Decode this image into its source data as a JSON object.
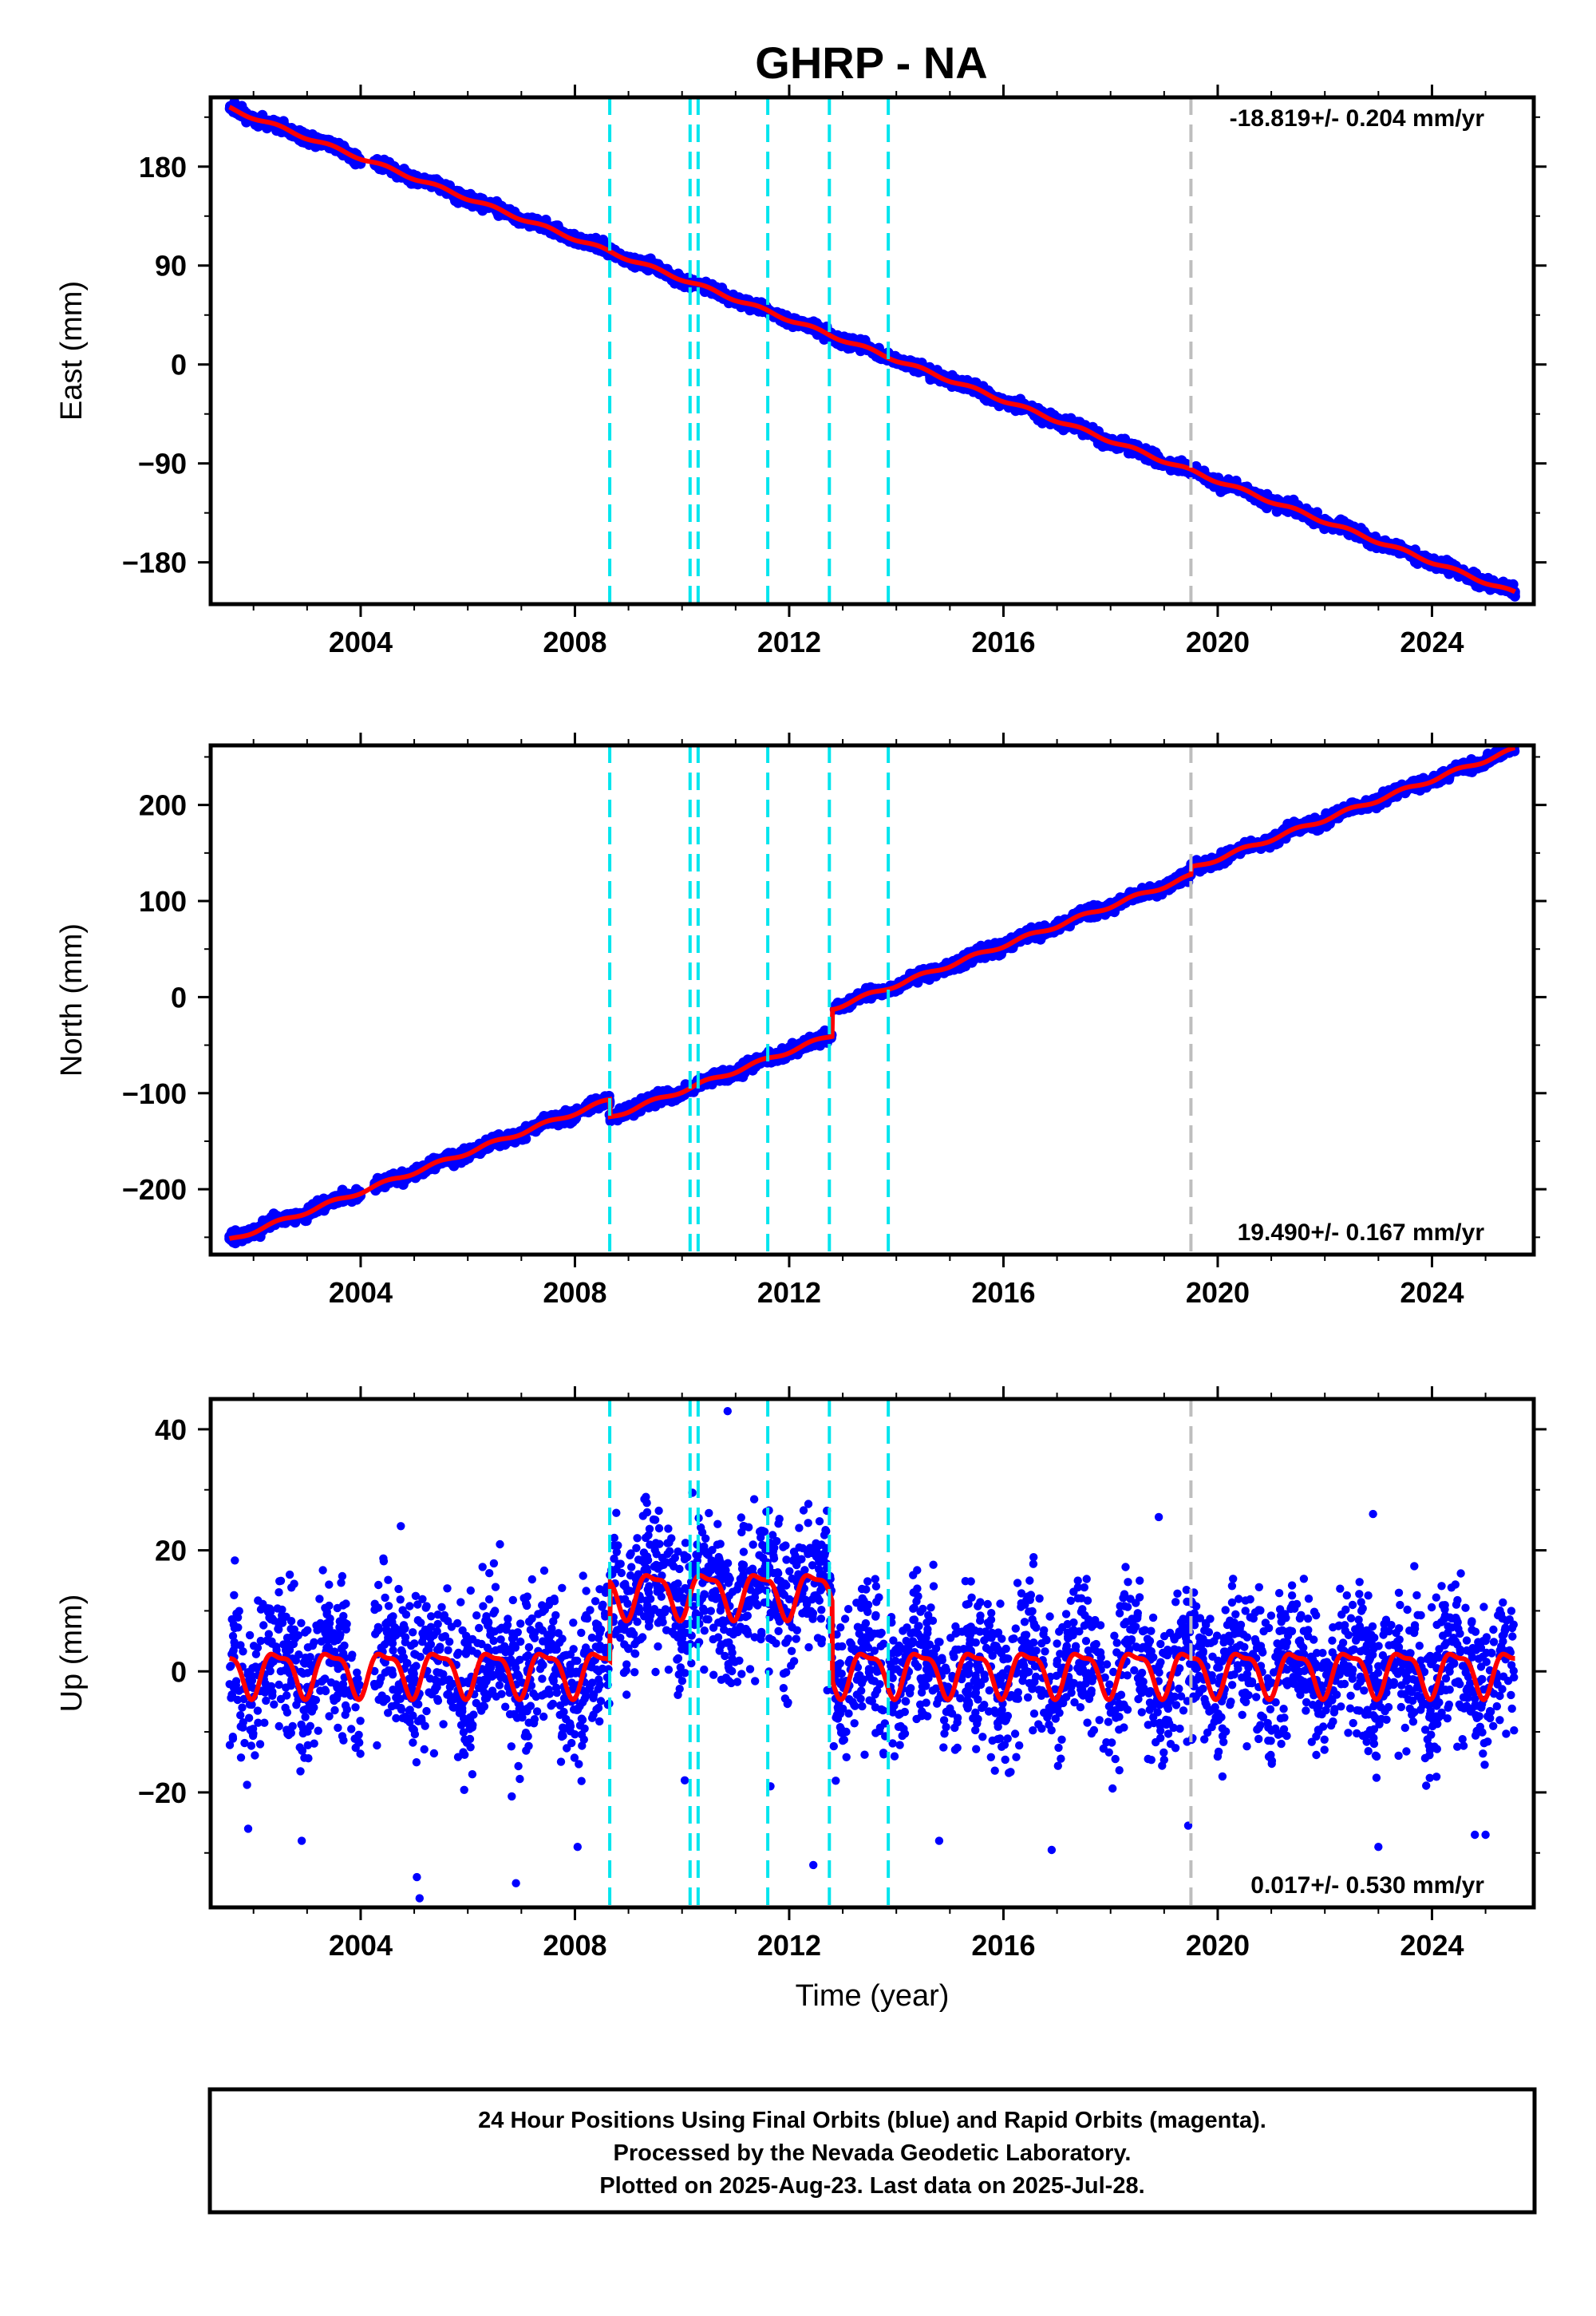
{
  "title": "GHRP - NA",
  "colors": {
    "data_points": "#0000ff",
    "model_fit": "#ff0000",
    "equipment_change_lines": "#00e5ee",
    "other_event_lines": "#bebebe"
  },
  "chart_data": [
    {
      "type": "scatter",
      "component": "east",
      "ylabel": "East (mm)",
      "xlabel": "",
      "xlim": [
        2001.2,
        2025.9
      ],
      "ylim": [
        -218,
        243
      ],
      "yticks": [
        -180,
        -90,
        0,
        90,
        180
      ],
      "xticks": [
        2004,
        2008,
        2012,
        2016,
        2020,
        2024
      ],
      "rate_label": "-18.819+/- 0.204 mm/yr",
      "rate_position": "top-right",
      "trend": {
        "start": [
          2001.55,
          233
        ],
        "end": [
          2025.55,
          -208
        ]
      },
      "offsets": [],
      "seasonal_amplitude": 1.5,
      "scatter_sd": 2.5,
      "outliers": []
    },
    {
      "type": "scatter",
      "component": "north",
      "ylabel": "North (mm)",
      "xlabel": "",
      "xlim": [
        2001.2,
        2025.9
      ],
      "ylim": [
        -268,
        262
      ],
      "yticks": [
        -200,
        -100,
        0,
        100,
        200
      ],
      "xticks": [
        2004,
        2008,
        2012,
        2016,
        2020,
        2024
      ],
      "rate_label": "19.490+/- 0.167 mm/yr",
      "rate_position": "bottom-right",
      "trend": {
        "start": [
          2001.55,
          -253
        ],
        "end": [
          2025.55,
          240
        ]
      },
      "offsets": [
        {
          "year": 2008.65,
          "size": -18
        },
        {
          "year": 2012.8,
          "size": 28
        },
        {
          "year": 2019.5,
          "size": 8
        }
      ],
      "seasonal_amplitude": 2,
      "scatter_sd": 3,
      "outliers": []
    },
    {
      "type": "scatter",
      "component": "up",
      "ylabel": "Up (mm)",
      "xlabel": "Time (year)",
      "xlim": [
        2001.2,
        2025.9
      ],
      "ylim": [
        -39,
        45
      ],
      "yticks": [
        -20,
        0,
        20,
        40
      ],
      "xticks": [
        2004,
        2008,
        2012,
        2016,
        2020,
        2024
      ],
      "rate_label": "0.017+/- 0.530 mm/yr",
      "rate_position": "bottom-right",
      "trend": {
        "start": [
          2001.55,
          0
        ],
        "end": [
          2025.55,
          0
        ]
      },
      "offsets": [
        {
          "year": 2008.65,
          "size": 13
        },
        {
          "year": 2012.8,
          "size": -13
        }
      ],
      "seasonal_amplitude": 3.5,
      "scatter_sd": 6,
      "outliers": [
        [
          2005.1,
          -37.5
        ],
        [
          2005.05,
          -34
        ],
        [
          2006.9,
          -35
        ],
        [
          2001.9,
          -26
        ],
        [
          2002.9,
          -28
        ],
        [
          2004.75,
          24
        ],
        [
          2006.6,
          21
        ],
        [
          2010.85,
          43
        ],
        [
          2011.65,
          -19
        ],
        [
          2012.45,
          -32
        ],
        [
          2014.8,
          -28
        ],
        [
          2016.9,
          -29.5
        ],
        [
          2018.9,
          25.5
        ],
        [
          2019.45,
          -25.5
        ],
        [
          2022.9,
          26
        ],
        [
          2023.0,
          -29
        ],
        [
          2024.8,
          -27
        ],
        [
          2025.0,
          -27
        ],
        [
          2008.05,
          -29
        ],
        [
          2010.05,
          -18
        ]
      ]
    }
  ],
  "event_lines": {
    "cyan": [
      2008.65,
      2010.15,
      2010.3,
      2011.6,
      2012.75,
      2013.85
    ],
    "gray": [
      2019.5
    ]
  },
  "footer": {
    "line1": "24 Hour Positions Using Final Orbits (blue) and Rapid Orbits (magenta).",
    "line2": "Processed by the Nevada Geodetic Laboratory.",
    "line3": "Plotted on 2025-Aug-23. Last data on 2025-Jul-28."
  }
}
